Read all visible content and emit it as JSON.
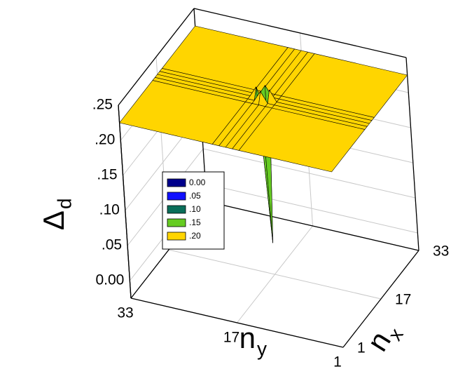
{
  "chart_data": {
    "type": "surface3d",
    "x": [
      1,
      15,
      16,
      17,
      18,
      19,
      33
    ],
    "y": [
      1,
      15,
      16,
      17,
      18,
      19,
      33
    ],
    "z": [
      [
        0.225,
        0.225,
        0.225,
        0.225,
        0.225,
        0.225,
        0.225
      ],
      [
        0.225,
        0.225,
        0.225,
        0.225,
        0.225,
        0.225,
        0.225
      ],
      [
        0.225,
        0.225,
        0.225,
        0.24,
        0.225,
        0.225,
        0.225
      ],
      [
        0.225,
        0.225,
        0.24,
        0.02,
        0.24,
        0.225,
        0.225
      ],
      [
        0.225,
        0.225,
        0.225,
        0.24,
        0.225,
        0.225,
        0.225
      ],
      [
        0.225,
        0.225,
        0.225,
        0.225,
        0.225,
        0.225,
        0.225
      ],
      [
        0.225,
        0.225,
        0.225,
        0.225,
        0.225,
        0.225,
        0.225
      ]
    ],
    "xlim": [
      1,
      33
    ],
    "ylim": [
      1,
      33
    ],
    "zlim": [
      -0.025,
      0.25
    ],
    "xticks": [
      1,
      17,
      33
    ],
    "yticks": [
      1,
      17,
      33
    ],
    "zticks": [
      {
        "value": 0,
        "label": "0.00"
      },
      {
        "value": 0.05,
        "label": ".05"
      },
      {
        "value": 0.1,
        "label": ".10"
      },
      {
        "value": 0.15,
        "label": ".15"
      },
      {
        "value": 0.2,
        "label": ".20"
      },
      {
        "value": 0.25,
        "label": ".25"
      }
    ],
    "xlabel": {
      "text": "n",
      "sub": "x"
    },
    "ylabel": {
      "text": "n",
      "sub": "y"
    },
    "zlabel": {
      "text": "Δ",
      "sub": "d"
    },
    "surface_color": "#e4521e",
    "grid": true,
    "legend": [
      {
        "value": 0,
        "label": "0.00",
        "color": "#00008b"
      },
      {
        "value": 0.05,
        "label": ".05",
        "color": "#1010ff"
      },
      {
        "value": 0.1,
        "label": ".10",
        "color": "#0a6e5a"
      },
      {
        "value": 0.15,
        "label": ".15",
        "color": "#66cc22"
      },
      {
        "value": 0.2,
        "label": ".20",
        "color": "#ffd500"
      }
    ]
  }
}
